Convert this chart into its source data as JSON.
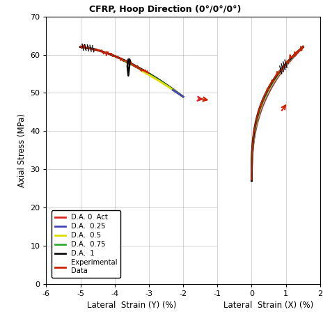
{
  "title": "CFRP, Hoop Direction (0°/0°/0°)",
  "xlabel_left": "Lateral  Strain (Y) (%)",
  "xlabel_right": "Lateral  Strain (X) (%)",
  "ylabel": "Axial Stress (MPa)",
  "colors": {
    "da0": "#dd2222",
    "da025": "#4444bb",
    "da05": "#dddd00",
    "da075": "#33aa33",
    "da1": "#111111",
    "exp": "#cc2200"
  },
  "legend_labels": [
    "D.A. 0  Act",
    "D.A.  0.25",
    "D.A.  0.5",
    "D.A.  0.75",
    "D.A.  1",
    "Experimental\nData"
  ]
}
